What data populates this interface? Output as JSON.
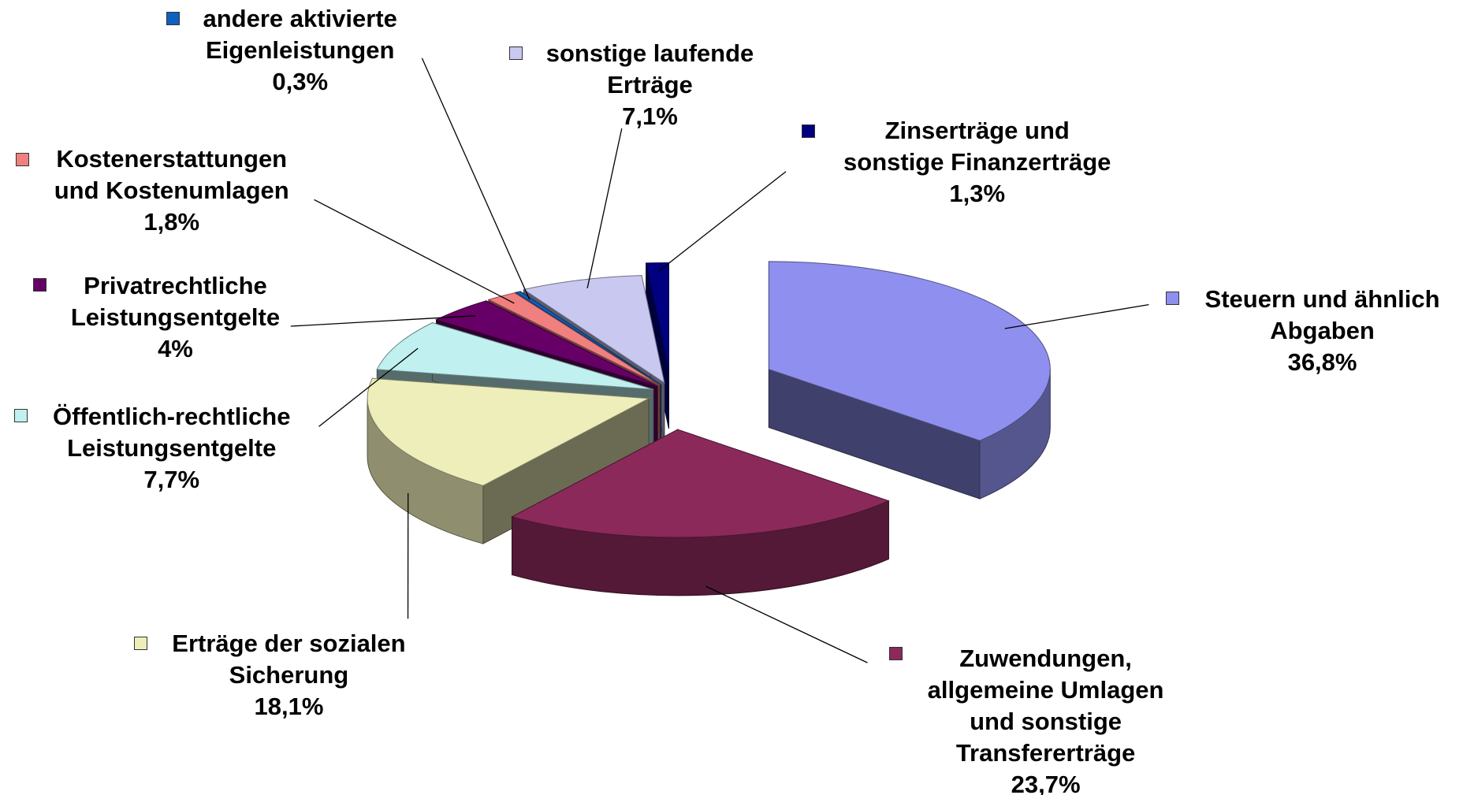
{
  "chart_data": {
    "type": "pie",
    "categories": [
      "Steuern und ähnlich\nAbgaben",
      "Zuwendungen,\nallgemeine Umlagen\nund sonstige\nTransfererträge",
      "Erträge der sozialen\nSicherung",
      "Öffentlich-rechtliche\nLeistungsentgelte",
      "Privatrechtliche\nLeistungsentgelte",
      "Kostenerstattungen\nund Kostenumlagen",
      "andere aktivierte\nEigenleistungen",
      "sonstige laufende\nErträge",
      "Zinserträge und\nsonstige Finanzerträge"
    ],
    "values": [
      36.8,
      23.7,
      18.1,
      7.7,
      4,
      1.8,
      0.3,
      7.1,
      1.3
    ],
    "value_labels": [
      "36,8%",
      "23,7%",
      "18,1%",
      "7,7%",
      "4%",
      "1,8%",
      "0,3%",
      "7,1%",
      "1,3%"
    ],
    "colors": [
      "#8f8fef",
      "#8b2a5a",
      "#eeeebb",
      "#c0f0f0",
      "#660066",
      "#f08080",
      "#1060c0",
      "#c8c8f0",
      "#000080"
    ]
  }
}
